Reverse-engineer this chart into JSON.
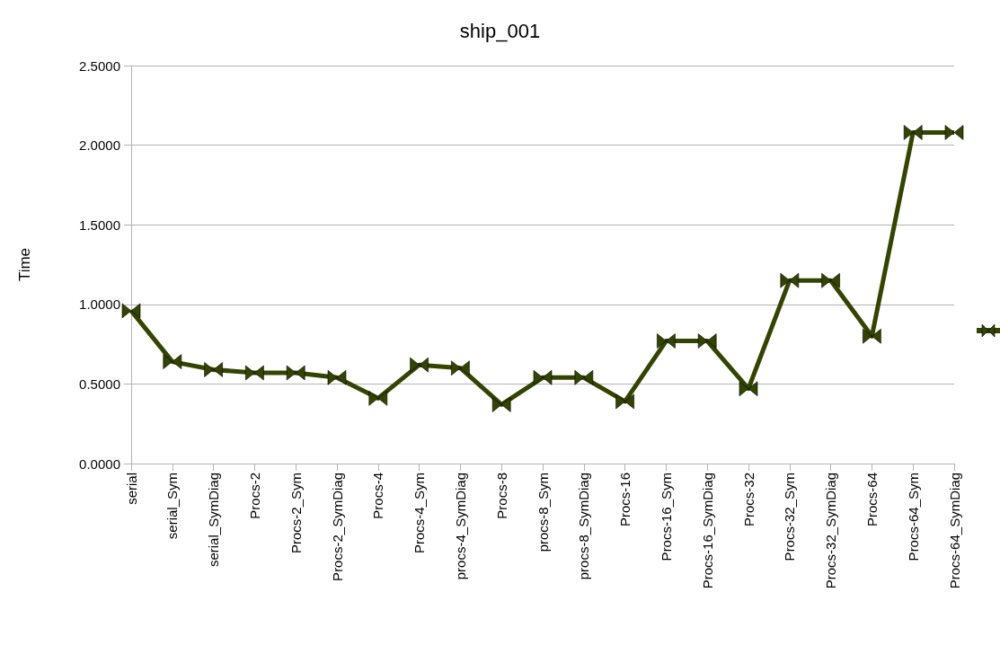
{
  "chart_data": {
    "type": "line",
    "title": "ship_001",
    "ylabel": "Time",
    "categories": [
      "serial",
      "serial_Sym",
      "serial_SymDiag",
      "Procs-2",
      "Procs-2_Sym",
      "Procs-2_SymDiag",
      "Procs-4",
      "Procs-4_Sym",
      "procs-4_SymDiag",
      "Procs-8",
      "procs-8_Sym",
      "procs-8_SymDiag",
      "Procs-16",
      "Procs-16_Sym",
      "Procs-16_SymDiag",
      "Procs-32",
      "Procs-32_Sym",
      "Procs-32_SymDiag",
      "Procs-64",
      "Procs-64_Sym",
      "Procs-64_SymDiag"
    ],
    "series": [
      {
        "color": "#334400",
        "values": [
          0.96,
          0.64,
          0.59,
          0.57,
          0.57,
          0.54,
          0.41,
          0.62,
          0.6,
          0.37,
          0.54,
          0.54,
          0.39,
          0.77,
          0.77,
          0.47,
          1.15,
          1.15,
          0.8,
          2.08,
          2.08
        ]
      }
    ],
    "ylim": [
      0,
      2.5
    ],
    "yticks": [
      {
        "value": 0,
        "label": "0.0000"
      },
      {
        "value": 0.5,
        "label": "0.5000"
      },
      {
        "value": 1,
        "label": "1.0000"
      },
      {
        "value": 1.5,
        "label": "1.5000"
      },
      {
        "value": 2,
        "label": "2.0000"
      },
      {
        "value": 2.5,
        "label": "2.5000"
      }
    ],
    "grid": "y",
    "marker": "triangle",
    "line_style": "solid"
  }
}
